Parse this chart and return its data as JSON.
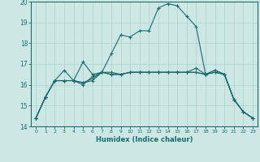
{
  "xlabel": "Humidex (Indice chaleur)",
  "xlim": [
    -0.5,
    23.5
  ],
  "ylim": [
    14,
    20
  ],
  "yticks": [
    14,
    15,
    16,
    17,
    18,
    19,
    20
  ],
  "xticks": [
    0,
    1,
    2,
    3,
    4,
    5,
    6,
    7,
    8,
    9,
    10,
    11,
    12,
    13,
    14,
    15,
    16,
    17,
    18,
    19,
    20,
    21,
    22,
    23
  ],
  "bg_color": "#cde8e4",
  "grid_color": "#b0d5d0",
  "line_color": "#1a6b6b",
  "lines": [
    [
      14.4,
      15.4,
      16.2,
      16.2,
      16.2,
      16.1,
      16.2,
      16.6,
      17.5,
      18.4,
      18.3,
      18.6,
      18.6,
      19.7,
      19.9,
      19.8,
      19.3,
      18.8,
      16.5,
      16.7,
      16.5,
      15.3,
      14.7,
      14.4
    ],
    [
      14.4,
      15.4,
      16.2,
      16.7,
      16.2,
      17.1,
      16.5,
      16.6,
      16.5,
      16.5,
      16.6,
      16.6,
      16.6,
      16.6,
      16.6,
      16.6,
      16.6,
      16.8,
      16.5,
      16.7,
      16.5,
      15.3,
      14.7,
      14.4
    ],
    [
      14.4,
      15.4,
      16.2,
      16.2,
      16.2,
      16.0,
      16.4,
      16.6,
      16.5,
      16.5,
      16.6,
      16.6,
      16.6,
      16.6,
      16.6,
      16.6,
      16.6,
      16.6,
      16.5,
      16.6,
      16.5,
      15.3,
      14.7,
      14.4
    ],
    [
      14.4,
      15.4,
      16.2,
      16.2,
      16.2,
      16.1,
      16.3,
      16.6,
      16.6,
      16.5,
      16.6,
      16.6,
      16.6,
      16.6,
      16.6,
      16.6,
      16.6,
      16.6,
      16.5,
      16.6,
      16.5,
      15.3,
      14.7,
      14.4
    ]
  ]
}
